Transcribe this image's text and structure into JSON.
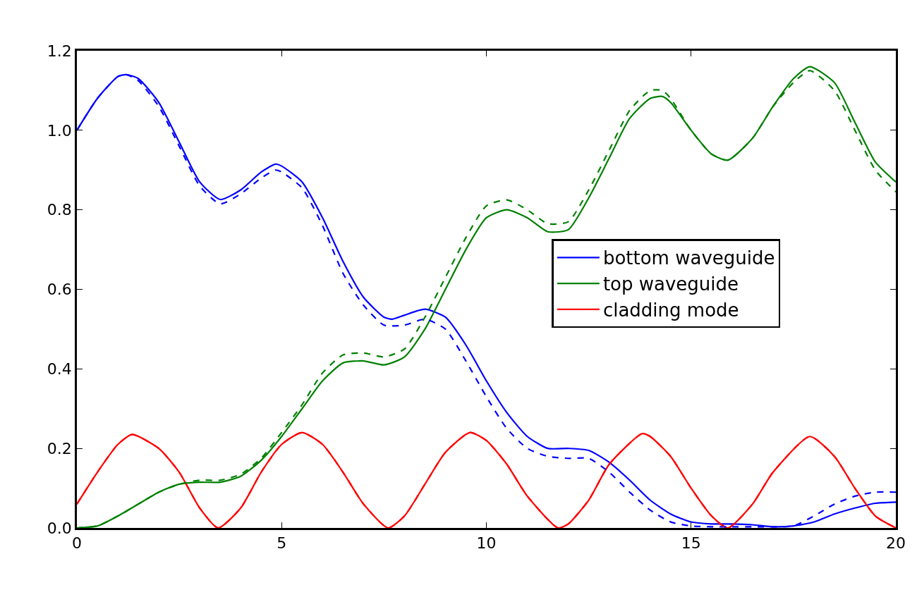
{
  "chart_data": {
    "type": "line",
    "xlim": [
      0,
      20
    ],
    "ylim": [
      0,
      1.2
    ],
    "xticks": [
      0,
      5,
      10,
      15,
      20
    ],
    "yticks": [
      {
        "value": 0,
        "label": "0.0"
      },
      0.2,
      0.4,
      0.6,
      0.8,
      {
        "value": 1,
        "label": "1.0"
      },
      1.2
    ],
    "legend": "right",
    "marker": "none",
    "series": [
      {
        "name": "bottom waveguide",
        "color": "#0000ff",
        "line_style": "solid",
        "x": [
          0,
          0.5,
          1,
          1.2,
          1.5,
          2,
          2.5,
          3,
          3.5,
          4,
          4.5,
          4.85,
          5,
          5.5,
          6,
          6.5,
          7,
          7.5,
          7.7,
          8,
          8.5,
          9,
          9.5,
          10,
          10.5,
          11,
          11.5,
          12,
          12.5,
          13,
          13.5,
          14,
          14.5,
          15,
          15.5,
          16,
          16.5,
          17,
          17.5,
          18,
          18.5,
          19,
          19.5,
          20
        ],
        "values": [
          1.0,
          1.08,
          1.135,
          1.14,
          1.13,
          1.07,
          0.97,
          0.87,
          0.826,
          0.85,
          0.895,
          0.915,
          0.91,
          0.87,
          0.78,
          0.67,
          0.58,
          0.53,
          0.525,
          0.535,
          0.55,
          0.53,
          0.46,
          0.37,
          0.29,
          0.23,
          0.2,
          0.2,
          0.195,
          0.165,
          0.12,
          0.07,
          0.035,
          0.015,
          0.01,
          0.01,
          0.008,
          0.003,
          0.005,
          0.015,
          0.035,
          0.05,
          0.062,
          0.065
        ]
      },
      {
        "name": "top waveguide",
        "color": "#008000",
        "line_style": "solid",
        "x": [
          0,
          0.5,
          1,
          1.5,
          2,
          2.5,
          3,
          3.5,
          4,
          4.5,
          5,
          5.5,
          6,
          6.5,
          7,
          7.5,
          8,
          8.5,
          9,
          9.5,
          10,
          10.5,
          11,
          11.5,
          12,
          12.5,
          13,
          13.5,
          14,
          14.3,
          14.5,
          15,
          15.5,
          15.9,
          16.5,
          17,
          17.5,
          17.9,
          18.5,
          19,
          19.5,
          20
        ],
        "values": [
          0,
          0.005,
          0.03,
          0.06,
          0.09,
          0.11,
          0.115,
          0.115,
          0.13,
          0.17,
          0.23,
          0.3,
          0.37,
          0.415,
          0.42,
          0.41,
          0.43,
          0.5,
          0.6,
          0.7,
          0.78,
          0.8,
          0.78,
          0.745,
          0.75,
          0.83,
          0.93,
          1.03,
          1.08,
          1.085,
          1.07,
          1.0,
          0.94,
          0.925,
          0.98,
          1.06,
          1.13,
          1.16,
          1.12,
          1.02,
          0.92,
          0.87
        ]
      },
      {
        "name": "cladding mode",
        "color": "#ff0000",
        "line_style": "solid",
        "x": [
          0,
          0.5,
          1,
          1.35,
          2,
          2.5,
          3,
          3.45,
          4,
          4.5,
          5,
          5.5,
          6,
          6.5,
          7,
          7.6,
          8,
          8.5,
          9,
          9.6,
          10,
          10.5,
          11,
          11.75,
          12,
          12.5,
          13,
          13.8,
          14,
          14.5,
          15,
          15.5,
          15.9,
          16.5,
          17,
          17.9,
          18.5,
          19,
          19.5,
          20
        ],
        "values": [
          0.06,
          0.14,
          0.21,
          0.235,
          0.2,
          0.14,
          0.05,
          0,
          0.05,
          0.14,
          0.21,
          0.24,
          0.21,
          0.14,
          0.06,
          0,
          0.03,
          0.11,
          0.19,
          0.24,
          0.22,
          0.16,
          0.08,
          0,
          0.01,
          0.07,
          0.16,
          0.237,
          0.23,
          0.18,
          0.1,
          0.03,
          0,
          0.06,
          0.14,
          0.23,
          0.18,
          0.1,
          0.03,
          0
        ]
      },
      {
        "color": "#0000ff",
        "line_style": "dashed",
        "x": [
          0,
          0.5,
          1,
          1.2,
          1.5,
          2,
          2.5,
          3,
          3.5,
          4,
          4.5,
          4.85,
          5,
          5.5,
          6,
          6.5,
          7,
          7.5,
          8,
          8.5,
          9,
          9.5,
          10,
          10.5,
          11,
          11.5,
          12,
          12.5,
          13,
          13.5,
          14,
          14.5,
          15,
          15.5,
          16,
          16.5,
          17,
          17.5,
          18,
          18.5,
          19,
          19.5,
          20
        ],
        "values": [
          1.0,
          1.08,
          1.135,
          1.14,
          1.125,
          1.06,
          0.96,
          0.86,
          0.815,
          0.84,
          0.88,
          0.9,
          0.895,
          0.855,
          0.76,
          0.64,
          0.56,
          0.51,
          0.51,
          0.525,
          0.5,
          0.42,
          0.33,
          0.25,
          0.2,
          0.18,
          0.175,
          0.175,
          0.14,
          0.09,
          0.045,
          0.015,
          0.005,
          0.003,
          0.003,
          0.003,
          0.003,
          0.005,
          0.03,
          0.06,
          0.08,
          0.09,
          0.09
        ]
      },
      {
        "color": "#008000",
        "line_style": "dashed",
        "x": [
          0,
          0.5,
          1,
          1.5,
          2,
          2.5,
          3,
          3.5,
          4,
          4.5,
          5,
          5.5,
          6,
          6.5,
          7,
          7.5,
          8,
          8.5,
          9,
          9.5,
          10,
          10.5,
          11,
          11.5,
          12,
          12.5,
          13,
          13.5,
          14,
          14.3,
          14.5,
          15,
          15.5,
          15.9,
          16.5,
          17,
          17.5,
          17.9,
          18.5,
          19,
          19.5,
          20
        ],
        "values": [
          0,
          0.005,
          0.03,
          0.06,
          0.09,
          0.11,
          0.12,
          0.12,
          0.135,
          0.175,
          0.24,
          0.31,
          0.39,
          0.435,
          0.44,
          0.43,
          0.45,
          0.53,
          0.63,
          0.73,
          0.81,
          0.825,
          0.8,
          0.765,
          0.77,
          0.85,
          0.95,
          1.05,
          1.1,
          1.1,
          1.08,
          1.0,
          0.94,
          0.925,
          0.98,
          1.06,
          1.12,
          1.15,
          1.1,
          1.0,
          0.9,
          0.845
        ]
      },
      {
        "color": "#ff0000",
        "line_style": "dashed",
        "x": [
          0,
          0.5,
          1,
          1.35,
          2,
          2.5,
          3,
          3.45,
          4,
          4.5,
          5,
          5.5,
          6,
          6.5,
          7,
          7.6,
          8,
          8.5,
          9,
          9.6,
          10,
          10.5,
          11,
          11.75,
          12,
          12.5,
          13,
          13.8,
          14,
          14.5,
          15,
          15.5,
          15.9,
          16.5,
          17,
          17.9,
          18.5,
          19,
          19.5,
          20
        ],
        "values": [
          0.06,
          0.14,
          0.21,
          0.235,
          0.2,
          0.14,
          0.05,
          0,
          0.05,
          0.14,
          0.21,
          0.24,
          0.21,
          0.14,
          0.06,
          0,
          0.03,
          0.11,
          0.19,
          0.24,
          0.22,
          0.16,
          0.08,
          0,
          0.01,
          0.07,
          0.16,
          0.237,
          0.23,
          0.18,
          0.1,
          0.03,
          0,
          0.06,
          0.14,
          0.23,
          0.18,
          0.1,
          0.03,
          0
        ]
      }
    ]
  }
}
